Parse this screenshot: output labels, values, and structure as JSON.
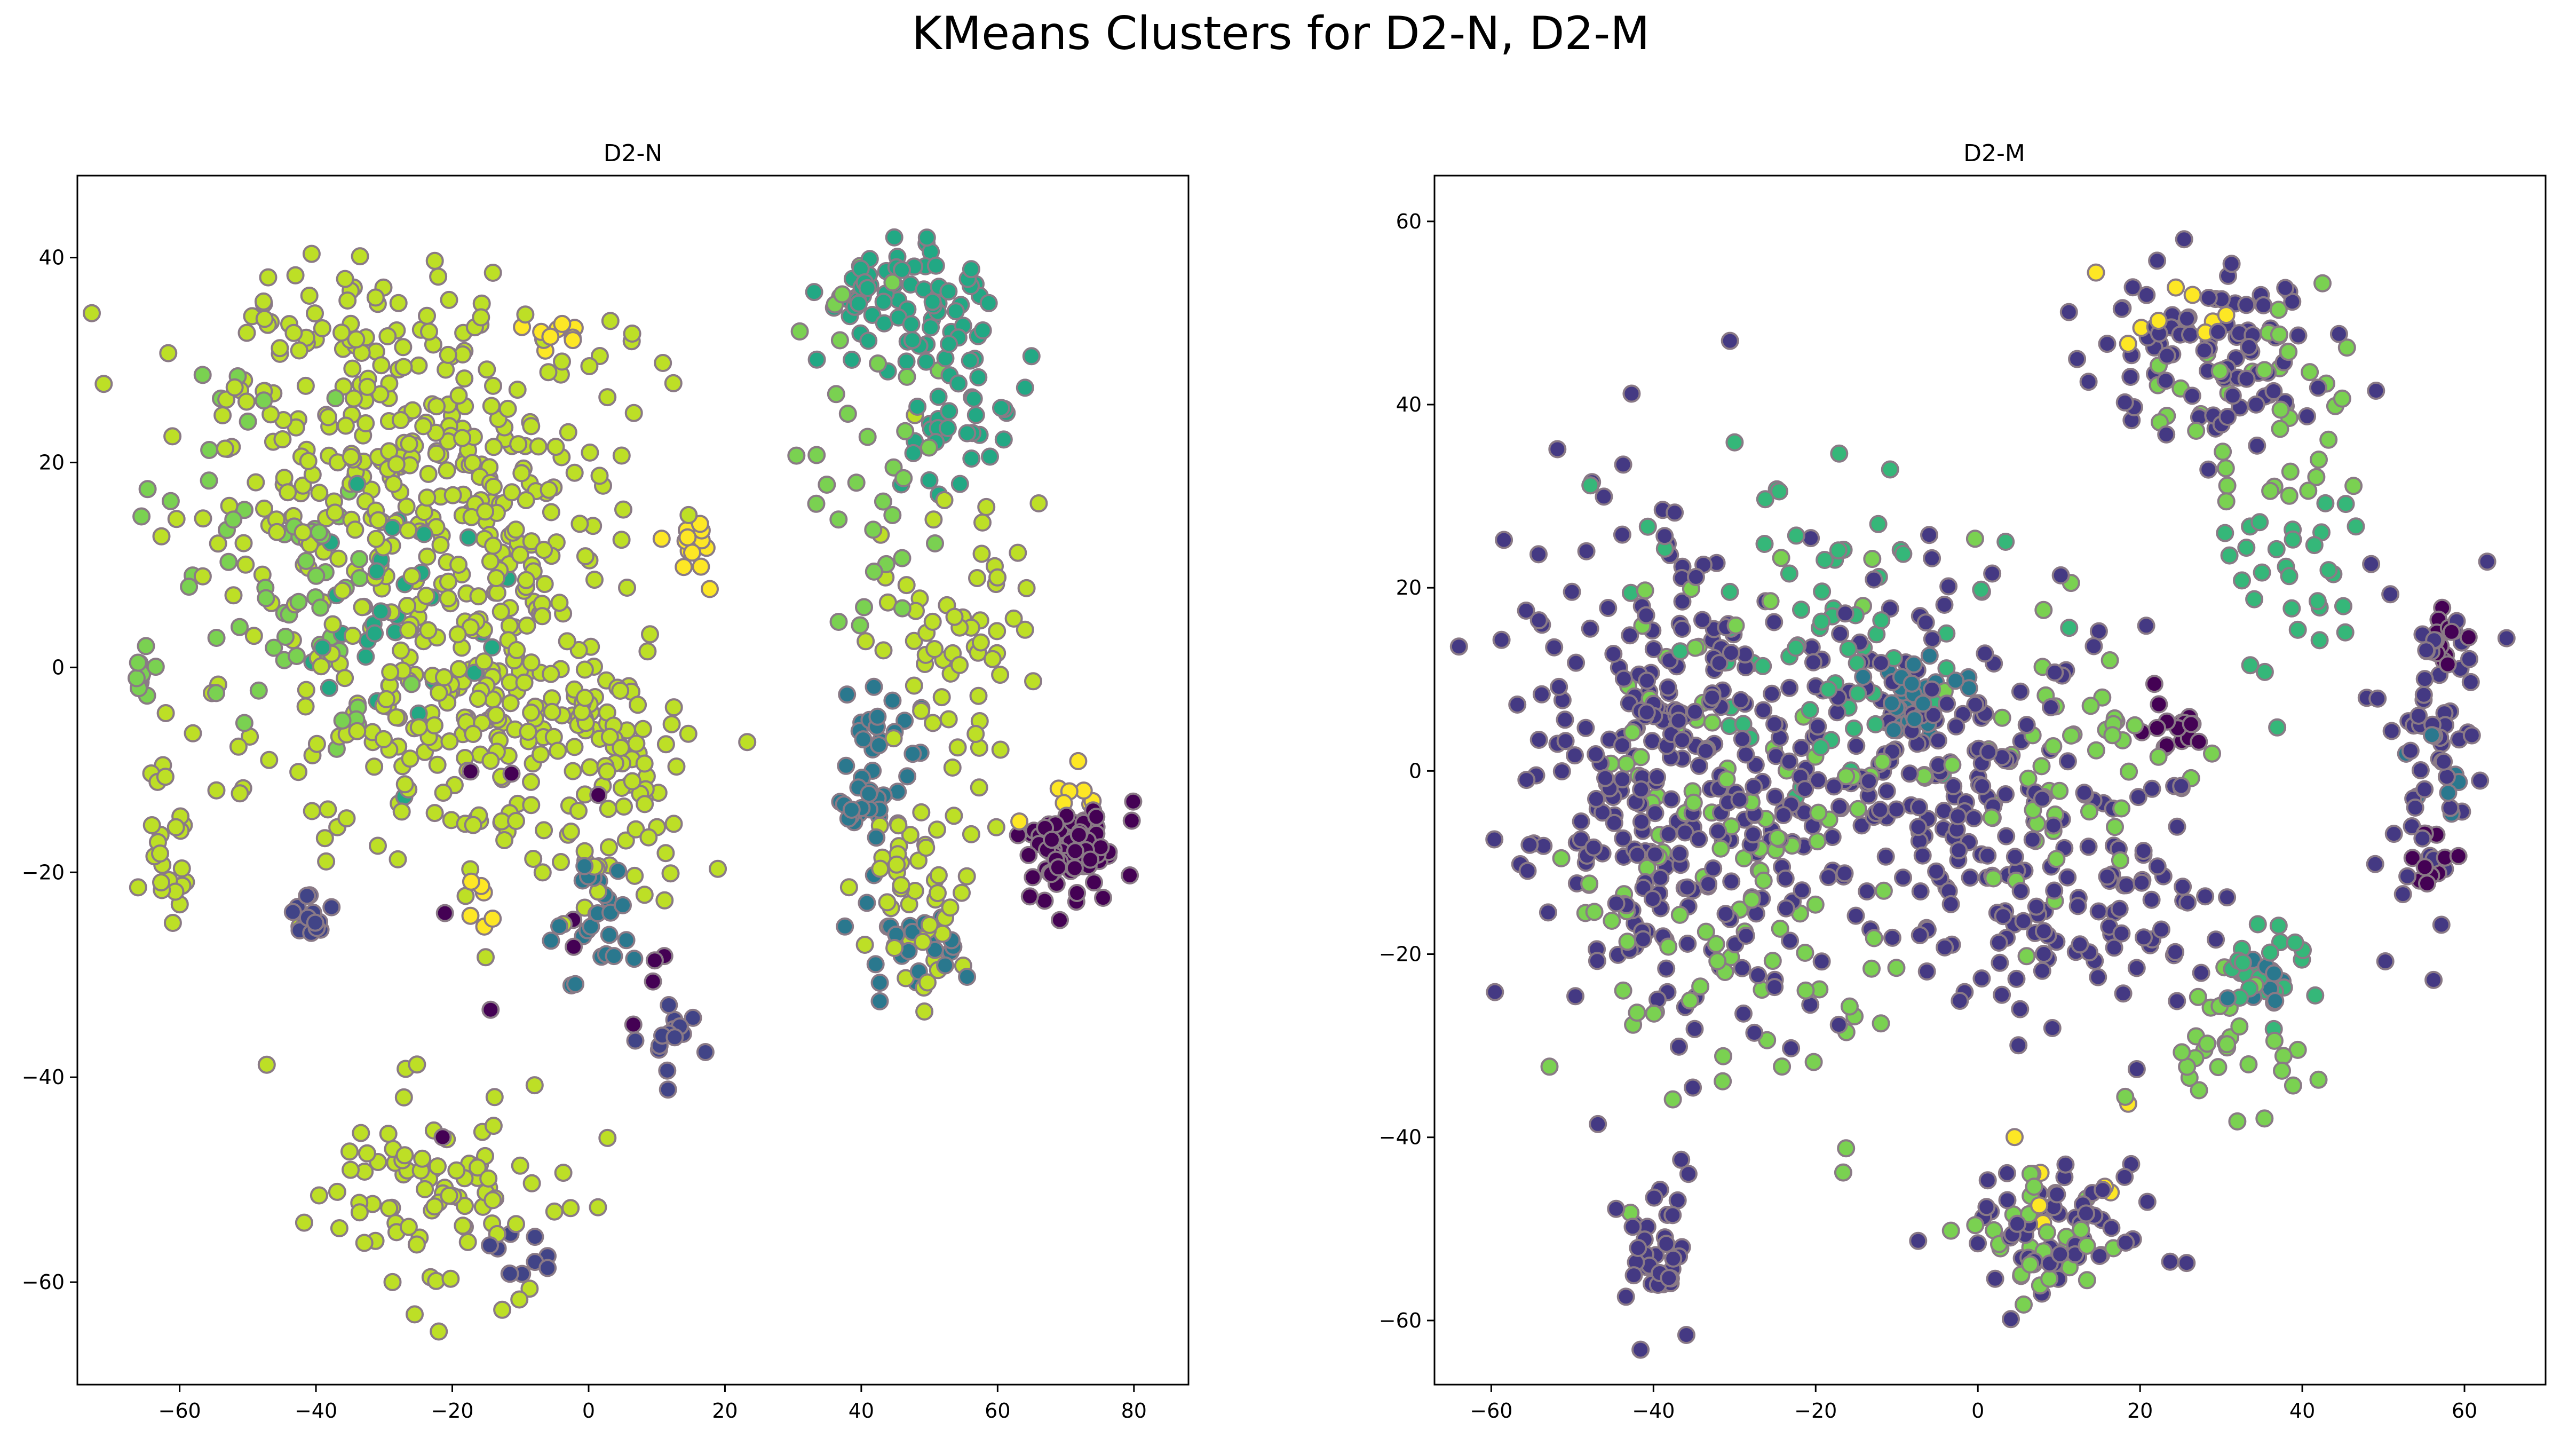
{
  "figure": {
    "title": "KMeans Clusters for D2-N, D2-M"
  },
  "chart_data": [
    {
      "type": "scatter",
      "title": "D2-N",
      "xlabel": "",
      "ylabel": "",
      "xlim": [
        -75,
        88
      ],
      "ylim": [
        -70,
        48
      ],
      "xticks": [
        -60,
        -40,
        -20,
        0,
        20,
        40,
        60,
        80
      ],
      "yticks": [
        -60,
        -40,
        -20,
        0,
        20,
        40
      ],
      "colormap": "viridis",
      "point_edge_color": "#8a7a86",
      "clusters": [
        {
          "color": "#bddf26",
          "regions": [
            {
              "cx": -30,
              "cy": 20,
              "rx": 30,
              "ry": 20,
              "n": 320
            },
            {
              "cx": -25,
              "cy": -5,
              "rx": 30,
              "ry": 14,
              "n": 150
            },
            {
              "cx": -10,
              "cy": 5,
              "rx": 14,
              "ry": 24,
              "n": 120
            },
            {
              "cx": 5,
              "cy": -10,
              "rx": 10,
              "ry": 14,
              "n": 70
            },
            {
              "cx": -22,
              "cy": -52,
              "rx": 16,
              "ry": 10,
              "n": 90
            },
            {
              "cx": 50,
              "cy": -22,
              "rx": 10,
              "ry": 10,
              "n": 50
            },
            {
              "cx": 55,
              "cy": 5,
              "rx": 12,
              "ry": 15,
              "n": 60
            },
            {
              "cx": -62,
              "cy": -18,
              "rx": 4,
              "ry": 8,
              "n": 25
            }
          ]
        },
        {
          "color": "#7ad151",
          "regions": [
            {
              "cx": -45,
              "cy": 10,
              "rx": 18,
              "ry": 22,
              "n": 60
            },
            {
              "cx": 40,
              "cy": 20,
              "rx": 12,
              "ry": 18,
              "n": 35
            },
            {
              "cx": -65,
              "cy": 0,
              "rx": 3,
              "ry": 3,
              "n": 10
            }
          ]
        },
        {
          "color": "#22a884",
          "regions": [
            {
              "cx": 45,
              "cy": 36,
              "rx": 12,
              "ry": 6,
              "n": 70
            },
            {
              "cx": 55,
              "cy": 25,
              "rx": 10,
              "ry": 10,
              "n": 40
            },
            {
              "cx": -28,
              "cy": 5,
              "rx": 16,
              "ry": 14,
              "n": 35
            }
          ]
        },
        {
          "color": "#2a788e",
          "regions": [
            {
              "cx": 42,
              "cy": -10,
              "rx": 6,
              "ry": 8,
              "n": 45
            },
            {
              "cx": 48,
              "cy": -28,
              "rx": 7,
              "ry": 5,
              "n": 25
            },
            {
              "cx": 2,
              "cy": -25,
              "rx": 8,
              "ry": 6,
              "n": 25
            }
          ]
        },
        {
          "color": "#414487",
          "regions": [
            {
              "cx": -40,
              "cy": -24,
              "rx": 4,
              "ry": 3,
              "n": 14
            },
            {
              "cx": 13,
              "cy": -37,
              "rx": 4,
              "ry": 4,
              "n": 15
            },
            {
              "cx": -10,
              "cy": -58,
              "rx": 5,
              "ry": 3,
              "n": 10
            }
          ]
        },
        {
          "color": "#440154",
          "regions": [
            {
              "cx": 70,
              "cy": -18,
              "rx": 8,
              "ry": 5,
              "n": 70
            },
            {
              "cx": -5,
              "cy": -30,
              "rx": 20,
              "ry": 30,
              "n": 12
            }
          ]
        },
        {
          "color": "#fde725",
          "regions": [
            {
              "cx": 15,
              "cy": 12,
              "rx": 4,
              "ry": 3,
              "n": 14
            },
            {
              "cx": -5,
              "cy": 32,
              "rx": 4,
              "ry": 3,
              "n": 10
            },
            {
              "cx": 70,
              "cy": -12,
              "rx": 6,
              "ry": 4,
              "n": 8
            },
            {
              "cx": -16,
              "cy": -23,
              "rx": 3,
              "ry": 3,
              "n": 6
            }
          ]
        }
      ]
    },
    {
      "type": "scatter",
      "title": "D2-M",
      "xlabel": "",
      "ylabel": "",
      "xlim": [
        -67,
        70
      ],
      "ylim": [
        -67,
        65
      ],
      "xticks": [
        -60,
        -40,
        -20,
        0,
        20,
        40,
        60
      ],
      "yticks": [
        -60,
        -40,
        -20,
        0,
        20,
        40,
        60
      ],
      "colormap": "viridis",
      "point_edge_color": "#8a7a86",
      "clusters": [
        {
          "color": "#443983",
          "regions": [
            {
              "cx": -40,
              "cy": 0,
              "rx": 18,
              "ry": 30,
              "n": 240
            },
            {
              "cx": -10,
              "cy": 0,
              "rx": 25,
              "ry": 20,
              "n": 220
            },
            {
              "cx": 15,
              "cy": -15,
              "rx": 18,
              "ry": 12,
              "n": 90
            },
            {
              "cx": 30,
              "cy": 45,
              "rx": 15,
              "ry": 10,
              "n": 90
            },
            {
              "cx": 55,
              "cy": 0,
              "rx": 7,
              "ry": 18,
              "n": 60
            },
            {
              "cx": -40,
              "cy": -52,
              "rx": 5,
              "ry": 8,
              "n": 35
            },
            {
              "cx": 10,
              "cy": -50,
              "rx": 12,
              "ry": 7,
              "n": 60
            }
          ]
        },
        {
          "color": "#440154",
          "regions": [
            {
              "cx": 25,
              "cy": 5,
              "rx": 5,
              "ry": 4,
              "n": 18
            },
            {
              "cx": 58,
              "cy": 15,
              "rx": 3,
              "ry": 4,
              "n": 14
            },
            {
              "cx": 56,
              "cy": -10,
              "rx": 4,
              "ry": 6,
              "n": 12
            }
          ]
        },
        {
          "color": "#7ad151",
          "regions": [
            {
              "cx": -30,
              "cy": -10,
              "rx": 22,
              "ry": 30,
              "n": 120
            },
            {
              "cx": 10,
              "cy": 0,
              "rx": 15,
              "ry": 12,
              "n": 50
            },
            {
              "cx": 35,
              "cy": 40,
              "rx": 12,
              "ry": 12,
              "n": 40
            },
            {
              "cx": 30,
              "cy": -30,
              "rx": 8,
              "ry": 8,
              "n": 30
            },
            {
              "cx": 8,
              "cy": -52,
              "rx": 10,
              "ry": 6,
              "n": 30
            }
          ]
        },
        {
          "color": "#35b779",
          "regions": [
            {
              "cx": -20,
              "cy": 15,
              "rx": 20,
              "ry": 18,
              "n": 70
            },
            {
              "cx": 40,
              "cy": 20,
              "rx": 8,
              "ry": 12,
              "n": 30
            },
            {
              "cx": 35,
              "cy": -22,
              "rx": 7,
              "ry": 6,
              "n": 25
            }
          ]
        },
        {
          "color": "#2a788e",
          "regions": [
            {
              "cx": -8,
              "cy": 8,
              "rx": 5,
              "ry": 4,
              "n": 30
            },
            {
              "cx": 35,
              "cy": -22,
              "rx": 4,
              "ry": 4,
              "n": 10
            },
            {
              "cx": 55,
              "cy": 0,
              "rx": 4,
              "ry": 8,
              "n": 10
            }
          ]
        },
        {
          "color": "#fde725",
          "regions": [
            {
              "cx": 25,
              "cy": 50,
              "rx": 10,
              "ry": 6,
              "n": 10
            },
            {
              "cx": 10,
              "cy": -45,
              "rx": 10,
              "ry": 10,
              "n": 8
            }
          ]
        }
      ]
    }
  ]
}
